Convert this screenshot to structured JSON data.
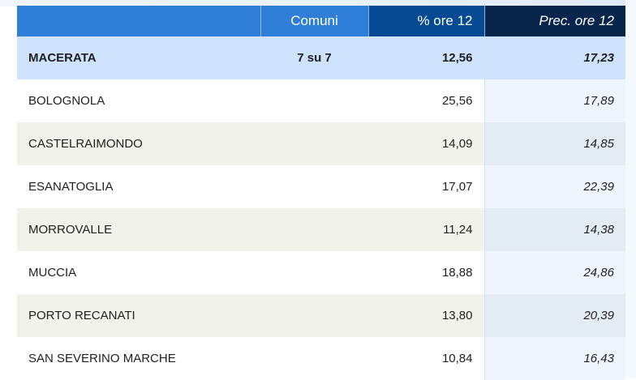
{
  "header": {
    "name": "",
    "comuni": "Comuni",
    "pct": "% ore 12",
    "prec": "Prec. ore 12"
  },
  "summary": {
    "name": "MACERATA",
    "comuni": "7 su 7",
    "pct": "12,56",
    "prec": "17,23"
  },
  "rows": [
    {
      "name": "BOLOGNOLA",
      "comuni": "",
      "pct": "25,56",
      "prec": "17,89"
    },
    {
      "name": "CASTELRAIMONDO",
      "comuni": "",
      "pct": "14,09",
      "prec": "14,85"
    },
    {
      "name": "ESANATOGLIA",
      "comuni": "",
      "pct": "17,07",
      "prec": "22,39"
    },
    {
      "name": "MORROVALLE",
      "comuni": "",
      "pct": "11,24",
      "prec": "14,38"
    },
    {
      "name": "MUCCIA",
      "comuni": "",
      "pct": "18,88",
      "prec": "24,86"
    },
    {
      "name": "PORTO RECANATI",
      "comuni": "",
      "pct": "13,80",
      "prec": "20,39"
    },
    {
      "name": "SAN SEVERINO MARCHE",
      "comuni": "",
      "pct": "10,84",
      "prec": "16,43"
    }
  ],
  "colors": {
    "header_light": "#2f7fd8",
    "header_mid": "#064a93",
    "header_dark": "#08254c",
    "summary_bg": "#cfe2fb",
    "row_alt_bg": "#f2f2ec"
  }
}
